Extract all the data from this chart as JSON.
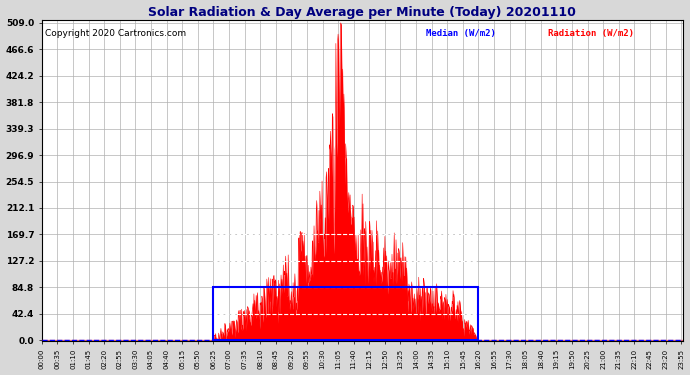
{
  "title": "Solar Radiation & Day Average per Minute (Today) 20201110",
  "copyright": "Copyright 2020 Cartronics.com",
  "legend_median": "Median (W/m2)",
  "legend_radiation": "Radiation (W/m2)",
  "yticks": [
    0.0,
    42.4,
    84.8,
    127.2,
    169.7,
    212.1,
    254.5,
    296.9,
    339.3,
    381.8,
    424.2,
    466.6,
    509.0
  ],
  "ymax": 509.0,
  "background_color": "#d8d8d8",
  "plot_bg_color": "#ffffff",
  "radiation_color": "#ff0000",
  "median_box_color": "#0000ff",
  "dashed_line_color": "#0000ff",
  "grid_color": "#b0b0b0",
  "title_color": "#000080",
  "median_value": 84.8,
  "n_minutes": 1440,
  "sunrise_minute": 385,
  "sunset_minute": 980,
  "tick_step": 35
}
